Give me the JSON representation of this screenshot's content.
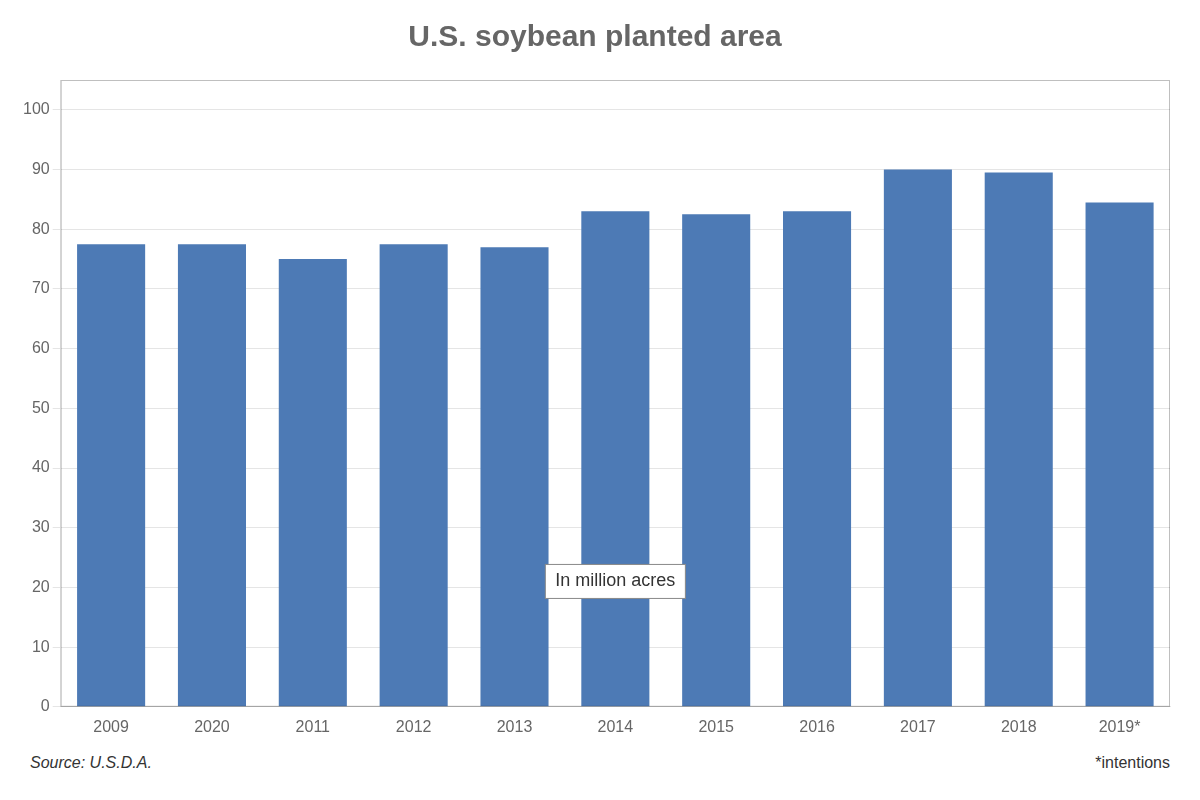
{
  "chart_data": {
    "type": "bar",
    "title": "U.S. soybean planted area",
    "categories": [
      "2009",
      "2020",
      "2011",
      "2012",
      "2013",
      "2014",
      "2015",
      "2016",
      "2017",
      "2018",
      "2019*"
    ],
    "values": [
      77.5,
      77.5,
      75.0,
      77.5,
      77.0,
      83.0,
      82.5,
      83.0,
      90.0,
      89.5,
      84.5
    ],
    "color": "#4d7ab5",
    "ylim": [
      0,
      105
    ],
    "yticks": [
      0,
      10,
      20,
      30,
      40,
      50,
      60,
      70,
      80,
      90,
      100
    ],
    "grid": true,
    "annotation": "In million acres",
    "source": "Source: U.S.D.A.",
    "note": "*intentions"
  }
}
